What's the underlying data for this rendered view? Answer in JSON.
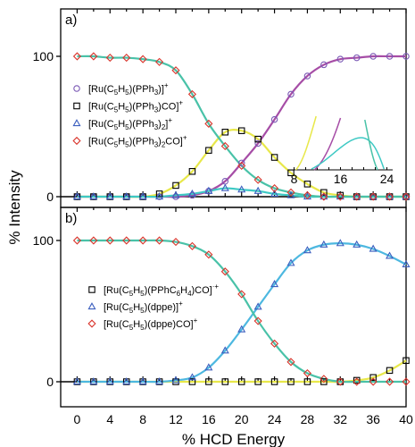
{
  "chart_data": {
    "type": "scatter",
    "xlabel": "% HCD Energy",
    "ylabel": "% Intensity",
    "x_ticks": [
      0,
      4,
      8,
      12,
      16,
      20,
      24,
      28,
      32,
      36,
      40
    ],
    "xlim": [
      -2,
      40
    ],
    "y_ticks": [
      0,
      100
    ],
    "ylim": [
      0,
      100
    ],
    "panels": [
      {
        "label": "a)",
        "legend_position": "left",
        "series": [
          {
            "legend": "[Ru(C5H5)(PPh3)]+",
            "marker": "circle",
            "marker_color": "#7b59b5",
            "fit_color": "#a64da6",
            "x": [
              0,
              2,
              4,
              6,
              8,
              10,
              12,
              14,
              16,
              18,
              20,
              22,
              24,
              26,
              28,
              30,
              32,
              34,
              36,
              38,
              40
            ],
            "y": [
              0,
              0,
              0,
              0,
              0,
              0,
              0,
              1,
              4,
              11,
              24,
              38,
              55,
              73,
              86,
              94,
              98,
              99,
              100,
              100,
              100
            ]
          },
          {
            "legend": "[Ru(C5H5)(PPh3)CO]+",
            "marker": "square",
            "marker_color": "#000000",
            "fit_color": "#e8e84a",
            "x": [
              0,
              2,
              4,
              6,
              8,
              10,
              12,
              14,
              16,
              18,
              20,
              22,
              24,
              26,
              28,
              30,
              32,
              34,
              36,
              38,
              40
            ],
            "y": [
              0,
              0,
              0,
              0,
              0,
              2,
              8,
              18,
              33,
              46,
              47,
              41,
              28,
              17,
              9,
              3,
              1,
              0,
              0,
              0,
              0
            ]
          },
          {
            "legend": "[Ru(C5H5)(PPh3)2]+",
            "marker": "triangle",
            "marker_color": "#3c5fbf",
            "fit_color": "#3ec9c4",
            "x": [
              0,
              2,
              4,
              6,
              8,
              10,
              12,
              14,
              16,
              18,
              20,
              22,
              24,
              26,
              28,
              30,
              32,
              34,
              36,
              38,
              40
            ],
            "y": [
              0,
              0,
              0,
              0,
              0,
              0,
              1,
              2,
              4,
              6,
              5,
              4,
              2,
              1,
              0,
              0,
              0,
              0,
              0,
              0,
              0
            ]
          },
          {
            "legend": "[Ru(C5H5)(PPh3)2CO]+",
            "marker": "diamond",
            "marker_color": "#d9342b",
            "fit_color": "#49c2a8",
            "x": [
              0,
              2,
              4,
              6,
              8,
              10,
              12,
              14,
              16,
              18,
              20,
              22,
              24,
              26,
              28,
              30,
              32,
              34,
              36,
              38,
              40
            ],
            "y": [
              100,
              100,
              99,
              99,
              98,
              96,
              90,
              73,
              52,
              36,
              22,
              12,
              6,
              3,
              1,
              0,
              0,
              0,
              0,
              0,
              0
            ]
          }
        ],
        "inset": {
          "x_ticks": [
            8,
            16,
            24
          ]
        }
      },
      {
        "label": "b)",
        "legend_position": "left",
        "series": [
          {
            "legend": "[Ru(C5H5)(PPhC6H4)CO]·+",
            "marker": "square",
            "marker_color": "#000000",
            "fit_color": "#e8e84a",
            "x": [
              0,
              2,
              4,
              6,
              8,
              10,
              12,
              14,
              16,
              18,
              20,
              22,
              24,
              26,
              28,
              30,
              32,
              34,
              36,
              38,
              40
            ],
            "y": [
              0,
              0,
              0,
              0,
              0,
              0,
              0,
              0,
              0,
              0,
              0,
              0,
              0,
              0,
              0,
              0,
              0,
              1,
              3,
              8,
              15
            ]
          },
          {
            "legend": "[Ru(C5H5)(dppe)]+",
            "marker": "triangle",
            "marker_color": "#3c5fbf",
            "fit_color": "#4db8e0",
            "x": [
              0,
              2,
              4,
              6,
              8,
              10,
              12,
              14,
              16,
              18,
              20,
              22,
              24,
              26,
              28,
              30,
              32,
              34,
              36,
              38,
              40
            ],
            "y": [
              0,
              0,
              0,
              0,
              0,
              0,
              1,
              3,
              10,
              22,
              37,
              53,
              69,
              84,
              93,
              97,
              98,
              97,
              94,
              89,
              83
            ]
          },
          {
            "legend": "[Ru(C5H5)(dppe)CO]+",
            "marker": "diamond",
            "marker_color": "#d9342b",
            "fit_color": "#49c2a8",
            "x": [
              0,
              2,
              4,
              6,
              8,
              10,
              12,
              14,
              16,
              18,
              20,
              22,
              24,
              26,
              28,
              30,
              32,
              34,
              36,
              38,
              40
            ],
            "y": [
              100,
              100,
              100,
              100,
              100,
              100,
              99,
              96,
              90,
              78,
              62,
              43,
              27,
              14,
              6,
              2,
              0,
              0,
              0,
              0,
              0
            ]
          }
        ]
      }
    ]
  }
}
